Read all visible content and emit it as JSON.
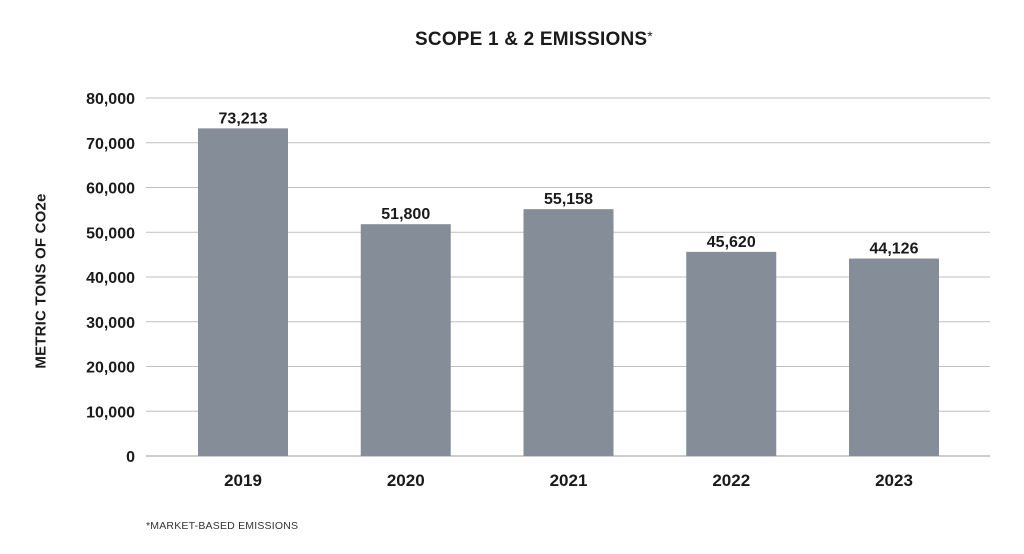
{
  "colors": {
    "bar": "#848d98",
    "grid": "#bfbfbf",
    "text": "#1a1a1a"
  },
  "chart_data": {
    "type": "bar",
    "title": "SCOPE 1 & 2 EMISSIONS",
    "title_marker": "*",
    "ylabel": "METRIC TONS OF CO2e",
    "xlabel": "",
    "categories": [
      "2019",
      "2020",
      "2021",
      "2022",
      "2023"
    ],
    "values": [
      73213,
      51800,
      55158,
      45620,
      44126
    ],
    "value_labels": [
      "73,213",
      "51,800",
      "55,158",
      "45,620",
      "44,126"
    ],
    "ylim": [
      0,
      80000
    ],
    "yticks": [
      0,
      10000,
      20000,
      30000,
      40000,
      50000,
      60000,
      70000,
      80000
    ],
    "ytick_labels": [
      "0",
      "10,000",
      "20,000",
      "30,000",
      "40,000",
      "50,000",
      "60,000",
      "70,000",
      "80,000"
    ],
    "grid": true,
    "legend": "none",
    "footnote": "*MARKET-BASED EMISSIONS"
  }
}
